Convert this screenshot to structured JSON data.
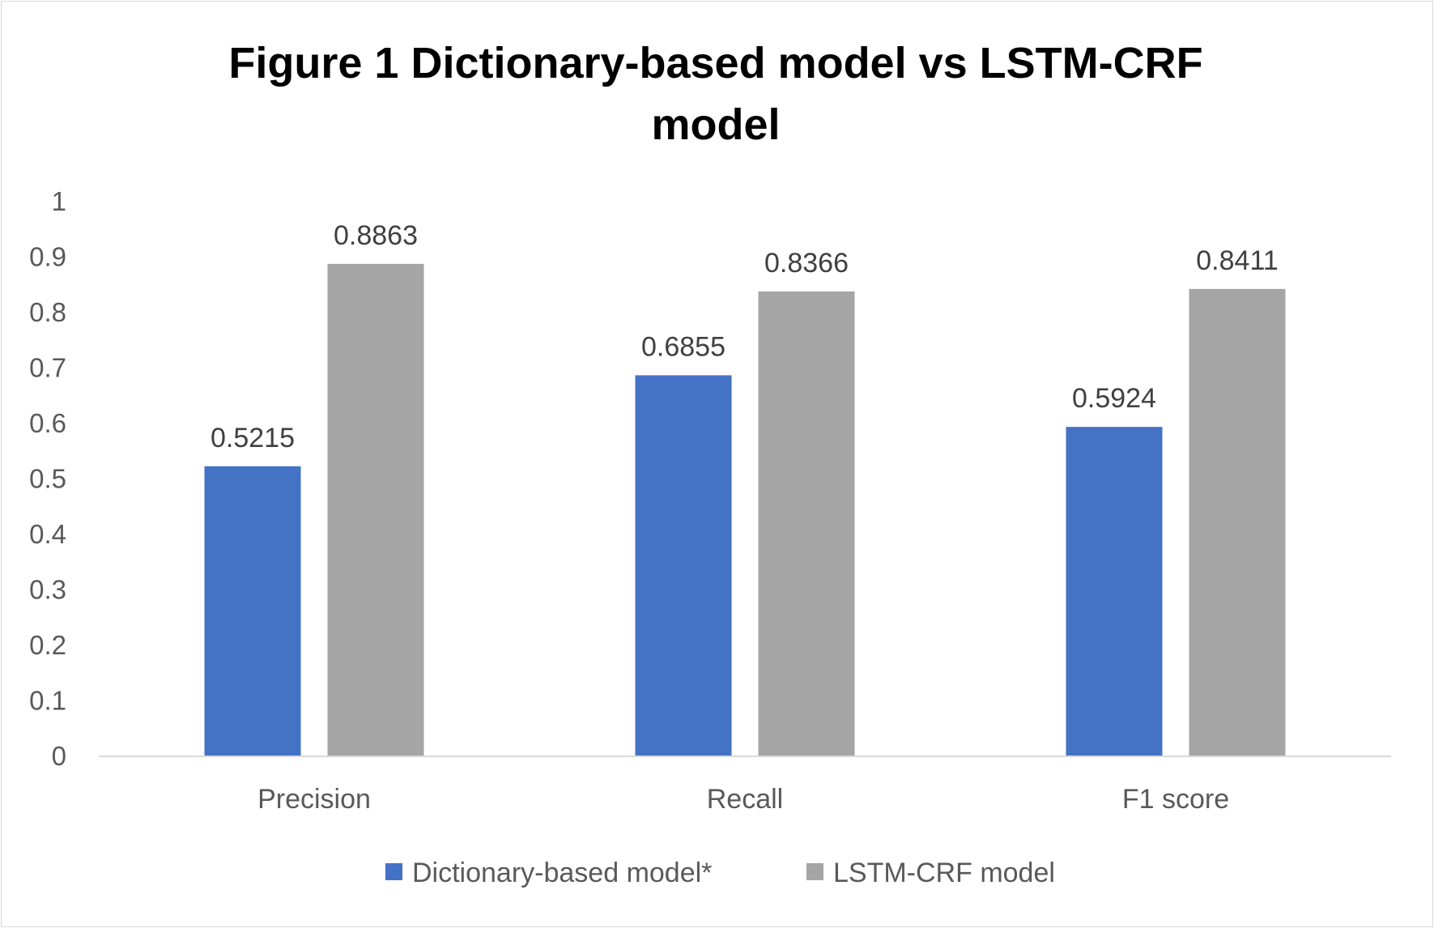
{
  "chart_data": {
    "type": "bar",
    "title_lines": [
      "Figure 1 Dictionary-based model vs LSTM-CRF",
      "model"
    ],
    "categories": [
      "Precision",
      "Recall",
      "F1 score"
    ],
    "series": [
      {
        "name": "Dictionary-based model*",
        "color": "#4472c4",
        "values": [
          0.5215,
          0.6855,
          0.5924
        ],
        "labels": [
          "0.5215",
          "0.6855",
          "0.5924"
        ]
      },
      {
        "name": "LSTM-CRF model",
        "color": "#a5a5a5",
        "values": [
          0.8863,
          0.8366,
          0.8411
        ],
        "labels": [
          "0.8863",
          "0.8366",
          "0.8411"
        ]
      }
    ],
    "yticks": [
      "0",
      "0.1",
      "0.2",
      "0.3",
      "0.4",
      "0.5",
      "0.6",
      "0.7",
      "0.8",
      "0.9",
      "1"
    ],
    "ylim": [
      0,
      1
    ],
    "grid": false,
    "legend_position": "bottom"
  }
}
